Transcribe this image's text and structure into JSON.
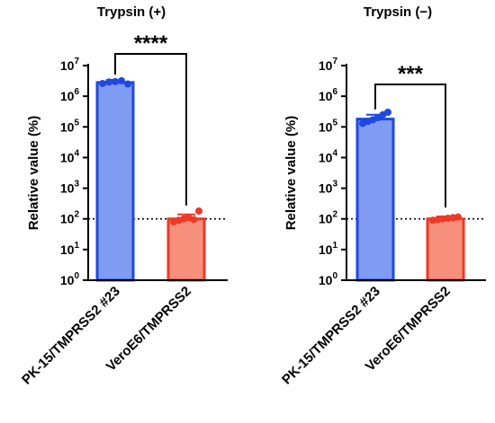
{
  "chart_data": [
    {
      "type": "bar",
      "title": "Trypsin (+)",
      "ylabel": "Relative value (%)",
      "yscale": "log",
      "ylim": [
        1,
        10000000
      ],
      "ytick_base": "10",
      "ytick_exponents": [
        "0",
        "1",
        "2",
        "3",
        "4",
        "5",
        "6",
        "7"
      ],
      "categories": [
        "PK-15/TMPRSS2 #23",
        "VeroE6/TMPRSS2"
      ],
      "values": [
        2800000,
        100
      ],
      "error_upper": [
        3400000,
        140
      ],
      "points": [
        [
          2600000,
          2900000,
          3000000,
          3200000,
          2500000
        ],
        [
          80,
          90,
          100,
          110,
          95,
          180
        ]
      ],
      "reference_line": 100,
      "significance": "****",
      "colors": {
        "fill": [
          "#7f9bf2",
          "#f6907c"
        ],
        "edge": [
          "#1f49e0",
          "#ec3a26"
        ]
      }
    },
    {
      "type": "bar",
      "title": "Trypsin (−)",
      "ylabel": "Relative value (%)",
      "yscale": "log",
      "ylim": [
        1,
        10000000
      ],
      "ytick_base": "10",
      "ytick_exponents": [
        "0",
        "1",
        "2",
        "3",
        "4",
        "5",
        "6",
        "7"
      ],
      "categories": [
        "PK-15/TMPRSS2 #23",
        "VeroE6/TMPRSS2"
      ],
      "values": [
        180000,
        100
      ],
      "error_upper": [
        250000,
        120
      ],
      "points": [
        [
          130000,
          150000,
          170000,
          200000,
          250000,
          300000
        ],
        [
          90,
          95,
          100,
          105,
          110,
          115
        ]
      ],
      "reference_line": 100,
      "significance": "***",
      "colors": {
        "fill": [
          "#7f9bf2",
          "#f6907c"
        ],
        "edge": [
          "#1f49e0",
          "#ec3a26"
        ]
      }
    }
  ]
}
